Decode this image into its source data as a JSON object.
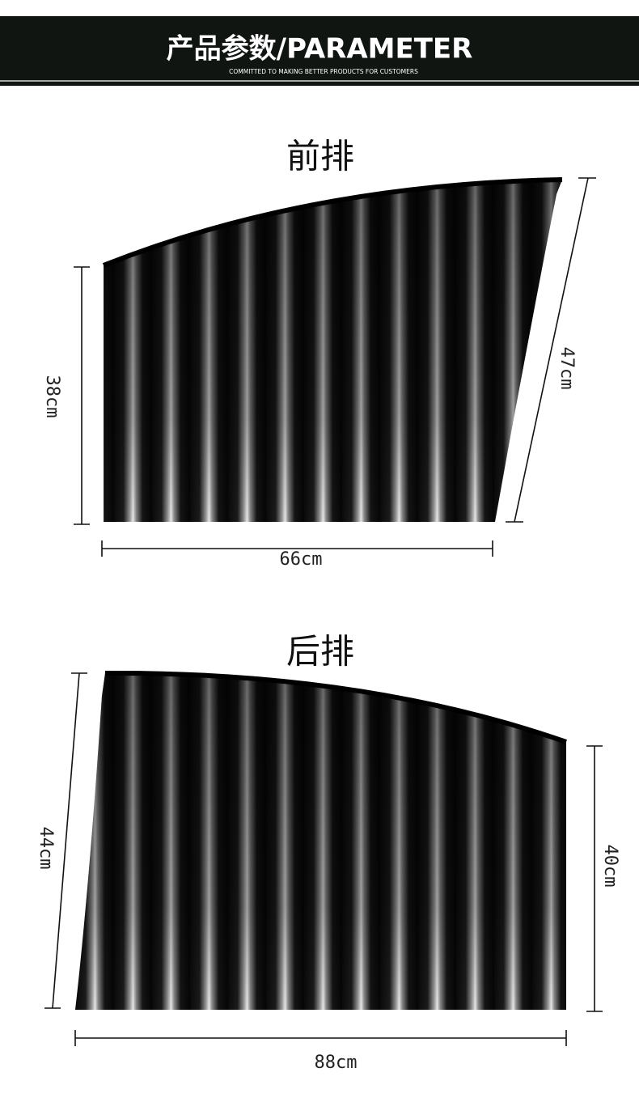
{
  "header": {
    "title": "产品参数/PARAMETER",
    "subtitle": "COMMITTED TO MAKING BETTER PRODUCTS FOR CUSTOMERS"
  },
  "front": {
    "label": "前排",
    "height": "38cm",
    "slant": "47cm",
    "width": "66cm"
  },
  "rear": {
    "label": "后排",
    "height_left": "44cm",
    "height_right": "40cm",
    "width": "88cm"
  }
}
